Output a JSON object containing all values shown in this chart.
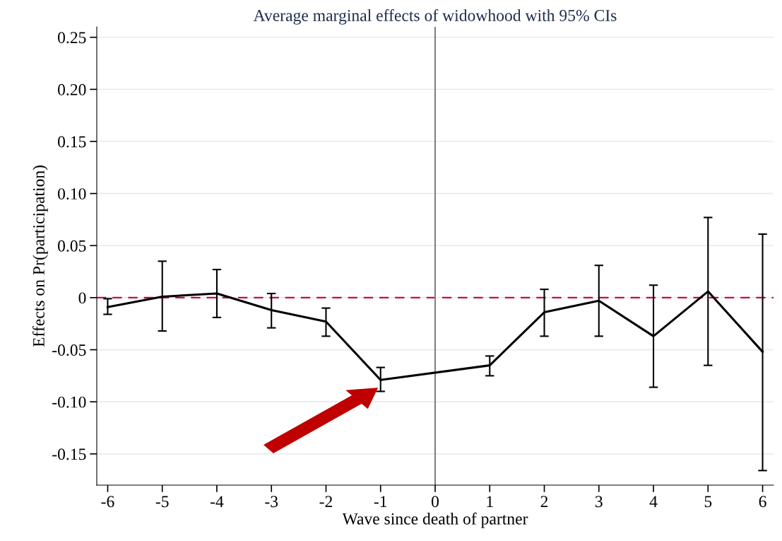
{
  "chart_data": {
    "type": "line",
    "title": "Average marginal effects of widowhood with 95% CIs",
    "xlabel": "Wave since death of partner",
    "ylabel": "Effects on Pr(participation)",
    "categories": [
      "-6",
      "-5",
      "-4",
      "-3",
      "-2",
      "-1",
      "0",
      "1",
      "2",
      "3",
      "4",
      "5",
      "6"
    ],
    "series": [
      {
        "color": "#000000",
        "values": [
          -0.009,
          0.001,
          0.004,
          -0.012,
          -0.023,
          -0.079,
          null,
          -0.065,
          -0.014,
          -0.003,
          -0.037,
          0.006,
          -0.052
        ],
        "errors": [
          [
            -0.016,
            -0.001
          ],
          [
            -0.032,
            0.035
          ],
          [
            -0.019,
            0.027
          ],
          [
            -0.029,
            0.004
          ],
          [
            -0.037,
            -0.01
          ],
          [
            -0.09,
            -0.067
          ],
          null,
          [
            -0.075,
            -0.056
          ],
          [
            -0.037,
            0.008
          ],
          [
            -0.037,
            0.031
          ],
          [
            -0.086,
            0.012
          ],
          [
            -0.065,
            0.077
          ],
          [
            -0.166,
            0.061
          ]
        ]
      }
    ],
    "ylim": [
      -0.18,
      0.26
    ],
    "yticks": [
      {
        "value": -0.15,
        "label": "-0.15"
      },
      {
        "value": -0.1,
        "label": "-0.10"
      },
      {
        "value": -0.05,
        "label": "-0.05"
      },
      0,
      {
        "value": 0.05,
        "label": "0.05"
      },
      {
        "value": 0.1,
        "label": "0.10"
      },
      {
        "value": 0.15,
        "label": "0.15"
      },
      {
        "value": 0.2,
        "label": "0.20"
      },
      {
        "value": 0.25,
        "label": "0.25"
      }
    ],
    "grid": "y",
    "marker": "none",
    "line_style": "solid",
    "legend": false,
    "ref_lines": [
      {
        "axis": "y",
        "value": 0,
        "color": "#c8103c",
        "line_style": "dashed"
      },
      {
        "axis": "x",
        "value": "0",
        "color": "#808080",
        "line_style": "solid"
      }
    ]
  }
}
